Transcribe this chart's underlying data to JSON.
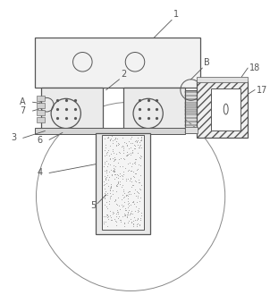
{
  "fig_width": 3.02,
  "fig_height": 3.39,
  "dpi": 100,
  "bg_color": "#ffffff",
  "lc": "#888888",
  "dk": "#555555",
  "lw": 0.7,
  "lw2": 0.9
}
